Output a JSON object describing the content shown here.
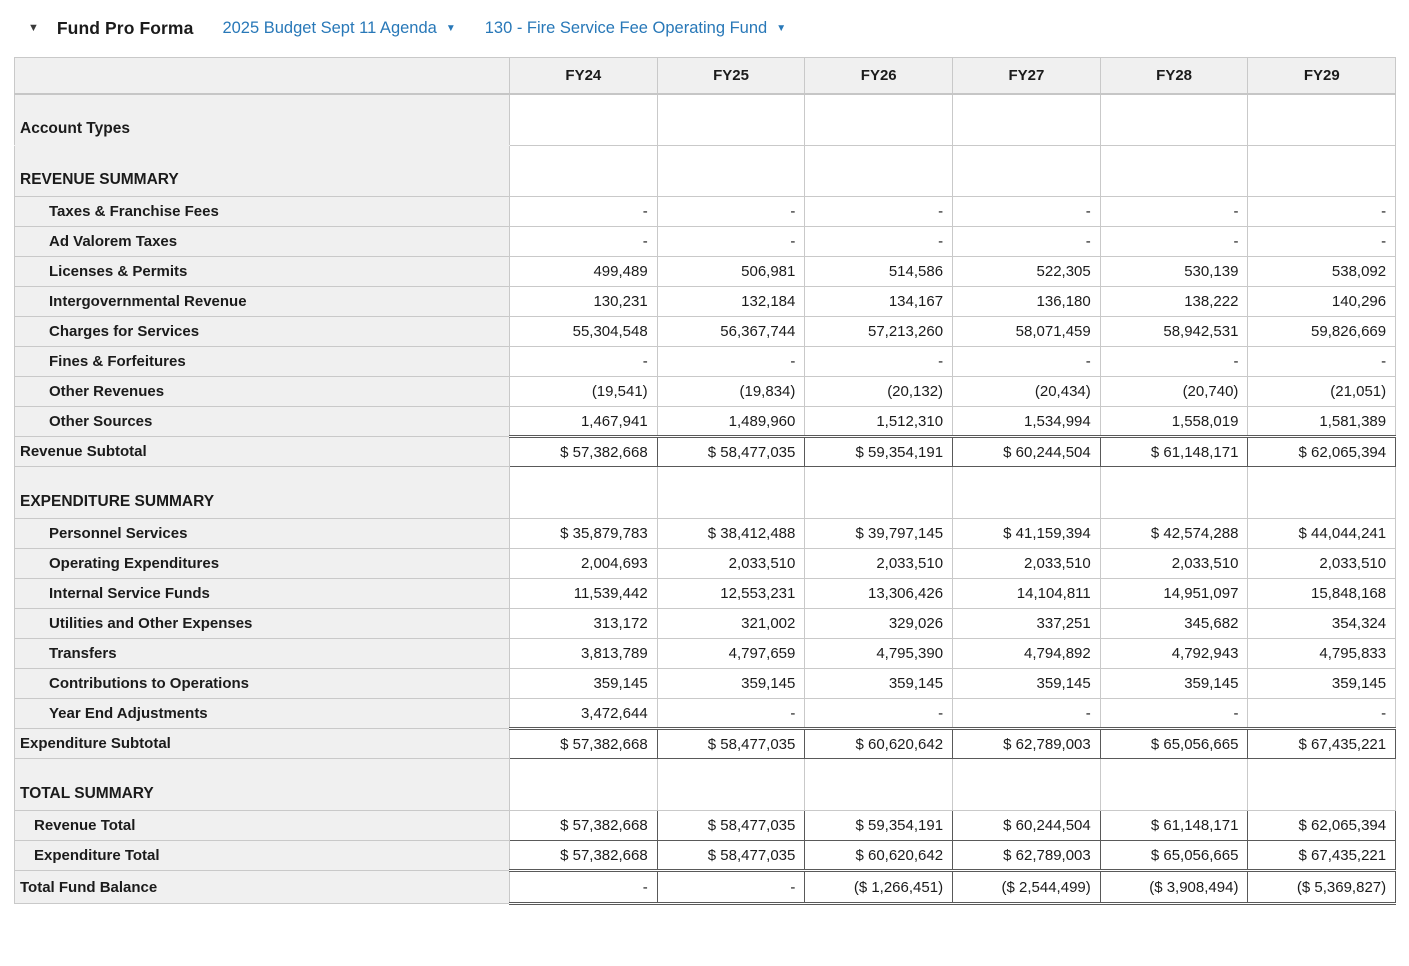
{
  "header": {
    "collapse_caret": "▼",
    "title": "Fund Pro Forma",
    "budget_dropdown": {
      "label": "2025 Budget Sept 11 Agenda",
      "caret": "▼"
    },
    "fund_dropdown": {
      "label": "130 - Fire Service Fee Operating Fund",
      "caret": "▼"
    }
  },
  "table": {
    "columns": [
      "FY24",
      "FY25",
      "FY26",
      "FY27",
      "FY28",
      "FY29"
    ],
    "rows": [
      {
        "type": "section_first",
        "label": "Account Types",
        "values": [
          "",
          "",
          "",
          "",
          "",
          ""
        ]
      },
      {
        "type": "section",
        "label": "REVENUE SUMMARY",
        "values": [
          "",
          "",
          "",
          "",
          "",
          ""
        ]
      },
      {
        "type": "detail",
        "label": "Taxes & Franchise Fees",
        "values": [
          "-",
          "-",
          "-",
          "-",
          "-",
          "-"
        ]
      },
      {
        "type": "detail",
        "label": "Ad Valorem Taxes",
        "values": [
          "-",
          "-",
          "-",
          "-",
          "-",
          "-"
        ]
      },
      {
        "type": "detail",
        "label": "Licenses & Permits",
        "values": [
          "499,489",
          "506,981",
          "514,586",
          "522,305",
          "530,139",
          "538,092"
        ]
      },
      {
        "type": "detail",
        "label": "Intergovernmental Revenue",
        "values": [
          "130,231",
          "132,184",
          "134,167",
          "136,180",
          "138,222",
          "140,296"
        ]
      },
      {
        "type": "detail",
        "label": "Charges for Services",
        "values": [
          "55,304,548",
          "56,367,744",
          "57,213,260",
          "58,071,459",
          "58,942,531",
          "59,826,669"
        ]
      },
      {
        "type": "detail",
        "label": "Fines & Forfeitures",
        "values": [
          "-",
          "-",
          "-",
          "-",
          "-",
          "-"
        ]
      },
      {
        "type": "detail",
        "label": "Other Revenues",
        "values": [
          "(19,541)",
          "(19,834)",
          "(20,132)",
          "(20,434)",
          "(20,740)",
          "(21,051)"
        ]
      },
      {
        "type": "detail",
        "label": "Other Sources",
        "values": [
          "1,467,941",
          "1,489,960",
          "1,512,310",
          "1,534,994",
          "1,558,019",
          "1,581,389"
        ]
      },
      {
        "type": "subtotal",
        "label": "Revenue Subtotal",
        "values": [
          "$ 57,382,668",
          "$ 58,477,035",
          "$ 59,354,191",
          "$ 60,244,504",
          "$ 61,148,171",
          "$ 62,065,394"
        ]
      },
      {
        "type": "section_gap",
        "label": "EXPENDITURE SUMMARY",
        "values": [
          "",
          "",
          "",
          "",
          "",
          ""
        ]
      },
      {
        "type": "detail",
        "label": "Personnel Services",
        "values": [
          "$ 35,879,783",
          "$ 38,412,488",
          "$ 39,797,145",
          "$ 41,159,394",
          "$ 42,574,288",
          "$ 44,044,241"
        ]
      },
      {
        "type": "detail",
        "label": "Operating Expenditures",
        "values": [
          "2,004,693",
          "2,033,510",
          "2,033,510",
          "2,033,510",
          "2,033,510",
          "2,033,510"
        ]
      },
      {
        "type": "detail",
        "label": "Internal Service Funds",
        "values": [
          "11,539,442",
          "12,553,231",
          "13,306,426",
          "14,104,811",
          "14,951,097",
          "15,848,168"
        ]
      },
      {
        "type": "detail",
        "label": "Utilities and Other Expenses",
        "values": [
          "313,172",
          "321,002",
          "329,026",
          "337,251",
          "345,682",
          "354,324"
        ]
      },
      {
        "type": "detail",
        "label": "Transfers",
        "values": [
          "3,813,789",
          "4,797,659",
          "4,795,390",
          "4,794,892",
          "4,792,943",
          "4,795,833"
        ]
      },
      {
        "type": "detail",
        "label": "Contributions to Operations",
        "values": [
          "359,145",
          "359,145",
          "359,145",
          "359,145",
          "359,145",
          "359,145"
        ]
      },
      {
        "type": "detail",
        "label": "Year End Adjustments",
        "values": [
          "3,472,644",
          "-",
          "-",
          "-",
          "-",
          "-"
        ]
      },
      {
        "type": "subtotal",
        "label": "Expenditure Subtotal",
        "values": [
          "$ 57,382,668",
          "$ 58,477,035",
          "$ 60,620,642",
          "$ 62,789,003",
          "$ 65,056,665",
          "$ 67,435,221"
        ]
      },
      {
        "type": "section_gap",
        "label": "TOTAL SUMMARY",
        "values": [
          "",
          "",
          "",
          "",
          "",
          ""
        ]
      },
      {
        "type": "total",
        "label": "Revenue Total",
        "values": [
          "$ 57,382,668",
          "$ 58,477,035",
          "$ 59,354,191",
          "$ 60,244,504",
          "$ 61,148,171",
          "$ 62,065,394"
        ]
      },
      {
        "type": "total",
        "label": "Expenditure Total",
        "values": [
          "$ 57,382,668",
          "$ 58,477,035",
          "$ 60,620,642",
          "$ 62,789,003",
          "$ 65,056,665",
          "$ 67,435,221"
        ]
      },
      {
        "type": "grand",
        "label": "Total Fund Balance",
        "values": [
          "-",
          "-",
          "($ 1,266,451)",
          "($ 2,544,499)",
          "($ 3,908,494)",
          "($ 5,369,827)"
        ]
      }
    ]
  },
  "colors": {
    "link_blue": "#2878b8",
    "label_column_bg": "#f0f0f0",
    "grid_line": "#c9c9c9",
    "emphasis_border": "#595959",
    "text": "#1b1b1b"
  }
}
